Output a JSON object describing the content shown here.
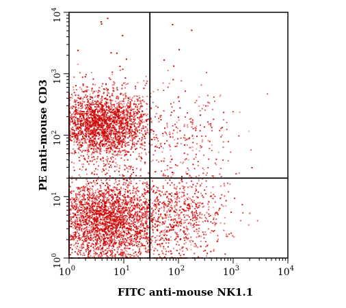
{
  "chart_data": {
    "type": "scatter",
    "title": "",
    "xlabel": "FITC anti-mouse NK1.1",
    "ylabel": "PE anti-mouse CD3",
    "x_scale": "log",
    "y_scale": "log",
    "xlim": [
      1,
      10000
    ],
    "ylim": [
      1,
      10000
    ],
    "x_ticks": [
      {
        "value": 1,
        "base": "10",
        "exp": "0"
      },
      {
        "value": 10,
        "base": "10",
        "exp": "1"
      },
      {
        "value": 100,
        "base": "10",
        "exp": "2"
      },
      {
        "value": 1000,
        "base": "10",
        "exp": "3"
      },
      {
        "value": 10000,
        "base": "10",
        "exp": "4"
      }
    ],
    "y_ticks": [
      {
        "value": 1,
        "base": "10",
        "exp": "0"
      },
      {
        "value": 10,
        "base": "10",
        "exp": "1"
      },
      {
        "value": 100,
        "base": "10",
        "exp": "2"
      },
      {
        "value": 1000,
        "base": "10",
        "exp": "3"
      },
      {
        "value": 10000,
        "base": "10",
        "exp": "4"
      }
    ],
    "quadrant_gates": {
      "x": 30,
      "y": 20
    },
    "point_color": "#cc0000",
    "populations": [
      {
        "x_center": 4,
        "y_center": 150,
        "x_spread_decades": 0.45,
        "y_spread_decades": 0.28,
        "count": 2600
      },
      {
        "x_center": 5,
        "y_center": 4,
        "x_spread_decades": 0.5,
        "y_spread_decades": 0.35,
        "count": 3000
      },
      {
        "x_center": 120,
        "y_center": 5,
        "x_spread_decades": 0.4,
        "y_spread_decades": 0.4,
        "count": 700
      },
      {
        "x_center": 150,
        "y_center": 80,
        "x_spread_decades": 0.45,
        "y_spread_decades": 0.45,
        "count": 220
      }
    ]
  }
}
